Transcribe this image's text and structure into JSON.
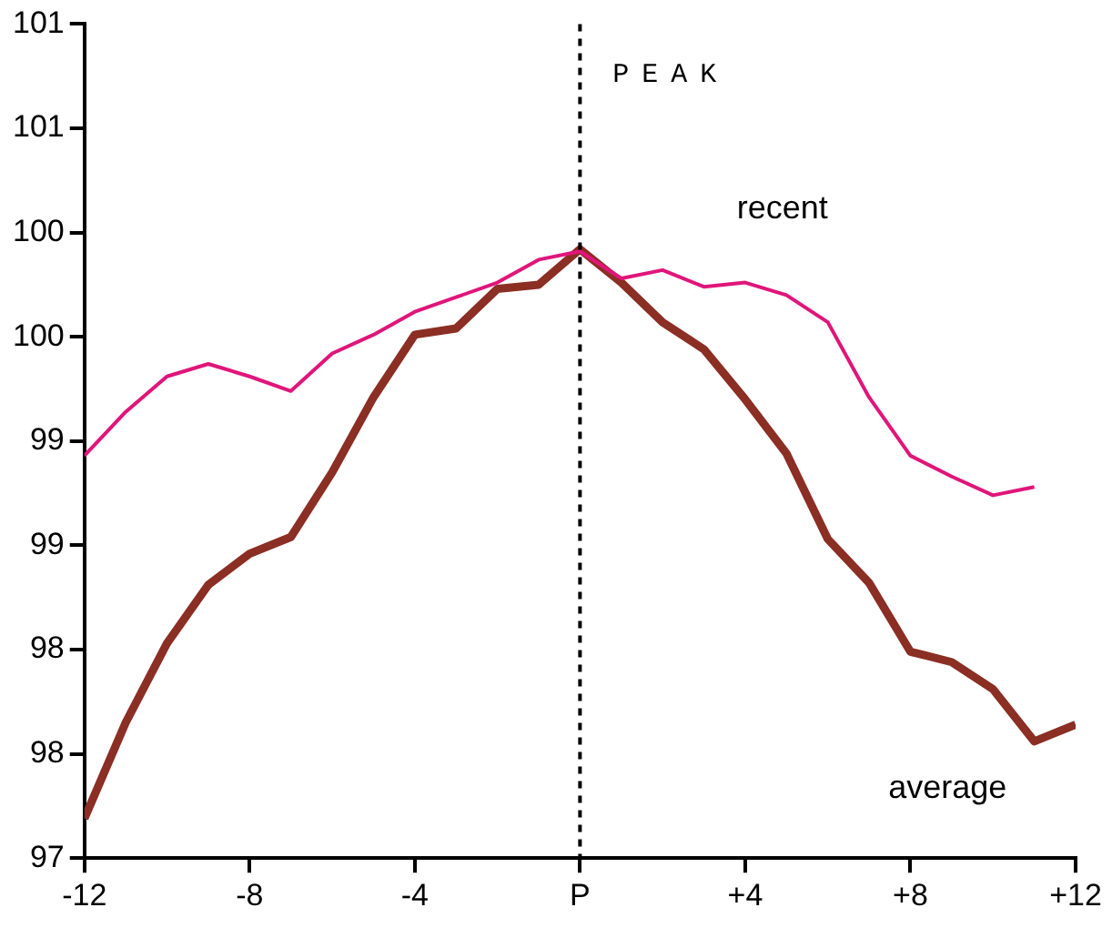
{
  "chart_data": {
    "type": "line",
    "x": [
      -12,
      -11,
      -10,
      -9,
      -8,
      -7,
      -6,
      -5,
      -4,
      -3,
      -2,
      -1,
      0,
      1,
      2,
      3,
      4,
      5,
      6,
      7,
      8,
      9,
      10,
      11,
      12
    ],
    "series": [
      {
        "name": "recent",
        "color": "#e0157a",
        "values": [
          98.93,
          99.14,
          99.31,
          99.37,
          99.31,
          99.24,
          99.42,
          99.51,
          99.62,
          99.69,
          99.76,
          99.87,
          99.91,
          99.78,
          99.82,
          99.74,
          99.76,
          99.7,
          99.57,
          99.21,
          98.93,
          98.83,
          98.74,
          98.78,
          null
        ]
      },
      {
        "name": "average",
        "color": "#8b2e24",
        "values": [
          97.19,
          97.65,
          98.03,
          98.31,
          98.46,
          98.54,
          98.85,
          99.21,
          99.51,
          99.54,
          99.73,
          99.75,
          99.92,
          99.76,
          99.57,
          99.44,
          99.2,
          98.94,
          98.53,
          98.32,
          97.99,
          97.94,
          97.81,
          97.56,
          97.64
        ]
      }
    ],
    "xlim": [
      -12,
      12
    ],
    "xticks": [
      -12,
      -8,
      -4,
      {
        "value": 0,
        "label": "P"
      },
      {
        "value": 4,
        "label": "+4"
      },
      {
        "value": 8,
        "label": "+8"
      },
      {
        "value": 12,
        "label": "+12"
      }
    ],
    "ylim": [
      97,
      101
    ],
    "yticks": [
      97,
      {
        "value": 97.5,
        "label": "98"
      },
      98,
      {
        "value": 98.5,
        "label": "99"
      },
      99,
      {
        "value": 99.5,
        "label": "100"
      },
      100,
      {
        "value": 100.5,
        "label": "101"
      },
      101
    ],
    "ref_lines": [
      {
        "axis": "x",
        "value": 0,
        "label": "PEAK",
        "color": "#000000",
        "line_style": "dashed"
      }
    ],
    "grid": false,
    "legend": false,
    "marker": "none",
    "line_style": "solid"
  }
}
